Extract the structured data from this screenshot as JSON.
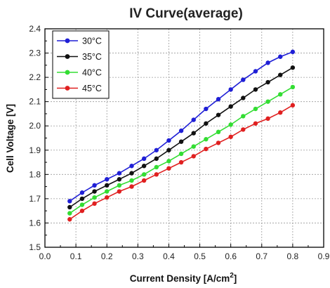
{
  "chart_data": {
    "type": "line",
    "title": "IV Curve(average)",
    "xlabel": "Current Density [A/cm",
    "xlabel_sup": "2",
    "xlabel_end": "]",
    "ylabel": "Cell Voltage [V]",
    "xlim": [
      0.0,
      0.9
    ],
    "ylim": [
      1.5,
      2.4
    ],
    "xticks": [
      "0.0",
      "0.1",
      "0.2",
      "0.3",
      "0.4",
      "0.5",
      "0.6",
      "0.7",
      "0.8",
      "0.9"
    ],
    "yticks": [
      "1.5",
      "1.6",
      "1.7",
      "1.8",
      "1.9",
      "2.0",
      "2.1",
      "2.2",
      "2.3",
      "2.4"
    ],
    "grid": true,
    "legend_position": "top-left",
    "x": [
      0.08,
      0.12,
      0.16,
      0.2,
      0.24,
      0.28,
      0.32,
      0.36,
      0.4,
      0.44,
      0.48,
      0.52,
      0.56,
      0.6,
      0.64,
      0.68,
      0.72,
      0.76,
      0.8
    ],
    "series": [
      {
        "name": "30°C",
        "color": "#1f1fd6",
        "values": [
          1.69,
          1.725,
          1.755,
          1.78,
          1.805,
          1.835,
          1.865,
          1.9,
          1.94,
          1.98,
          2.025,
          2.07,
          2.11,
          2.15,
          2.19,
          2.225,
          2.26,
          2.285,
          2.305
        ]
      },
      {
        "name": "35°C",
        "color": "#111111",
        "values": [
          1.665,
          1.7,
          1.73,
          1.755,
          1.78,
          1.805,
          1.835,
          1.865,
          1.9,
          1.935,
          1.97,
          2.01,
          2.045,
          2.08,
          2.115,
          2.15,
          2.18,
          2.21,
          2.24
        ]
      },
      {
        "name": "40°C",
        "color": "#33dd33",
        "values": [
          1.64,
          1.675,
          1.705,
          1.73,
          1.755,
          1.775,
          1.8,
          1.83,
          1.855,
          1.885,
          1.915,
          1.945,
          1.975,
          2.005,
          2.04,
          2.07,
          2.1,
          2.13,
          2.16
        ]
      },
      {
        "name": "45°C",
        "color": "#e02020",
        "values": [
          1.615,
          1.65,
          1.68,
          1.705,
          1.73,
          1.75,
          1.775,
          1.8,
          1.825,
          1.85,
          1.875,
          1.905,
          1.93,
          1.955,
          1.985,
          2.01,
          2.03,
          2.055,
          2.085
        ]
      }
    ]
  }
}
